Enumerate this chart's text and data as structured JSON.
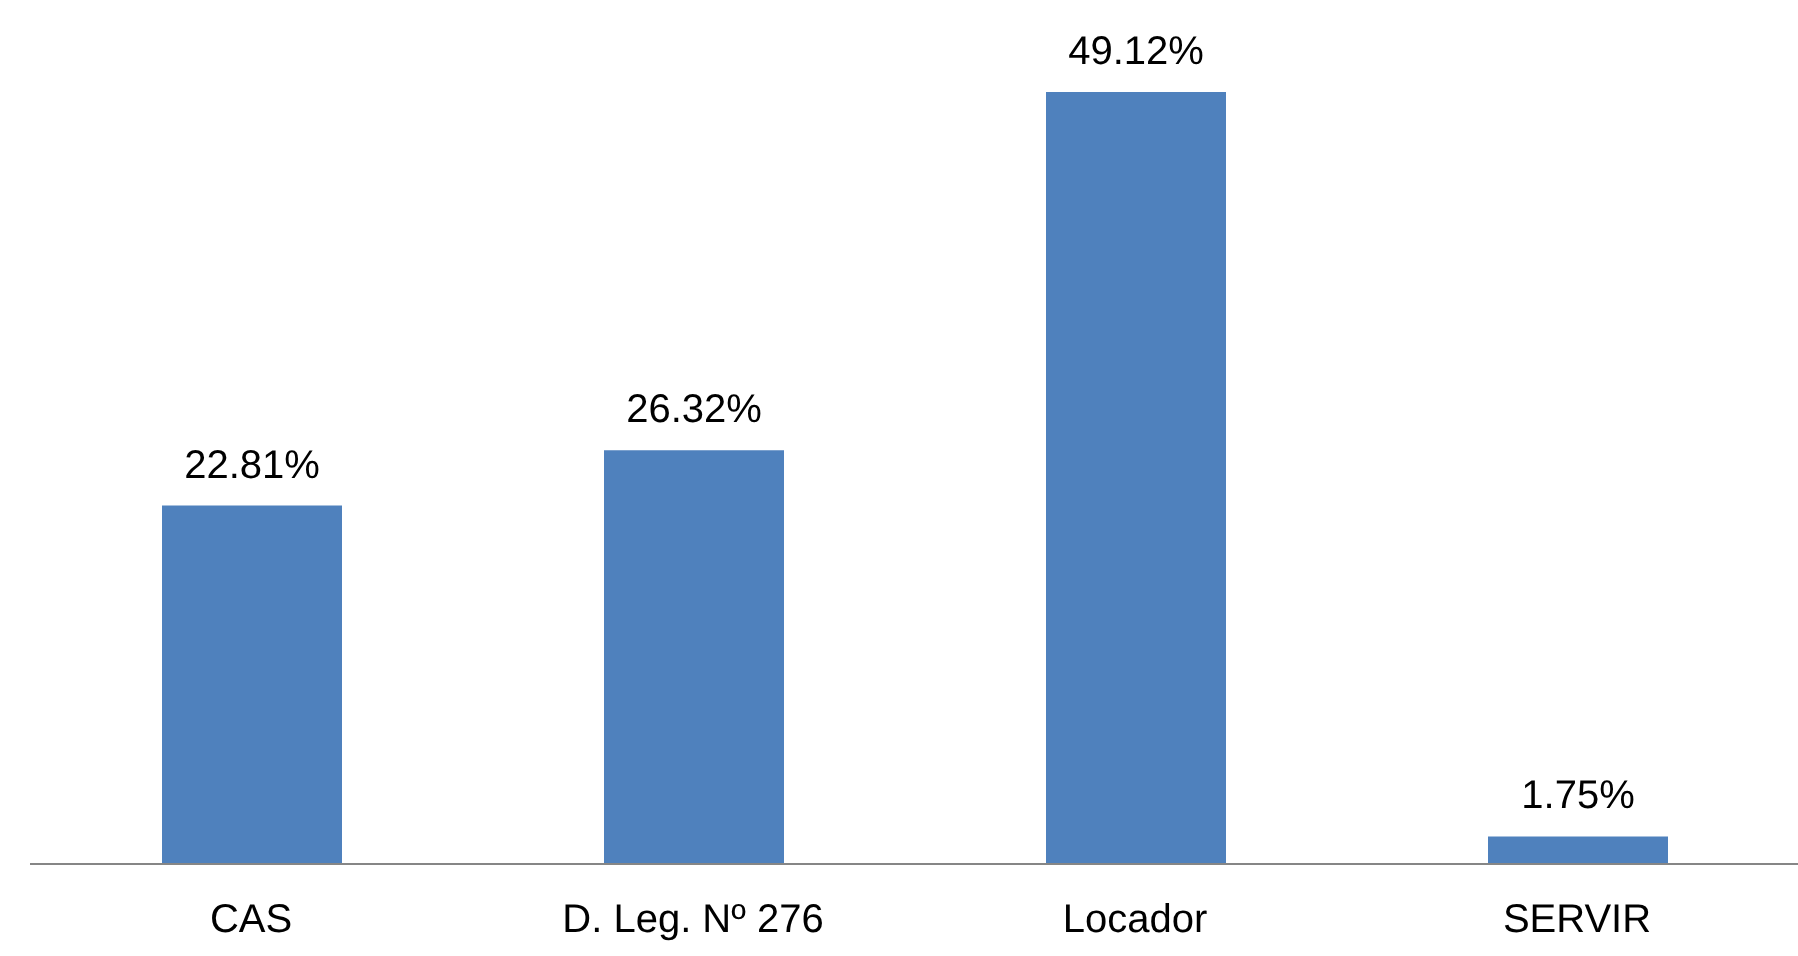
{
  "chart_data": {
    "type": "bar",
    "categories": [
      "CAS",
      "D. Leg. Nº 276",
      "Locador",
      "SERVIR"
    ],
    "values": [
      22.81,
      26.32,
      49.12,
      1.75
    ],
    "value_labels": [
      "22.81%",
      "26.32%",
      "49.12%",
      "1.75%"
    ],
    "color": "#4f81bd",
    "grid": false,
    "legend": false
  }
}
